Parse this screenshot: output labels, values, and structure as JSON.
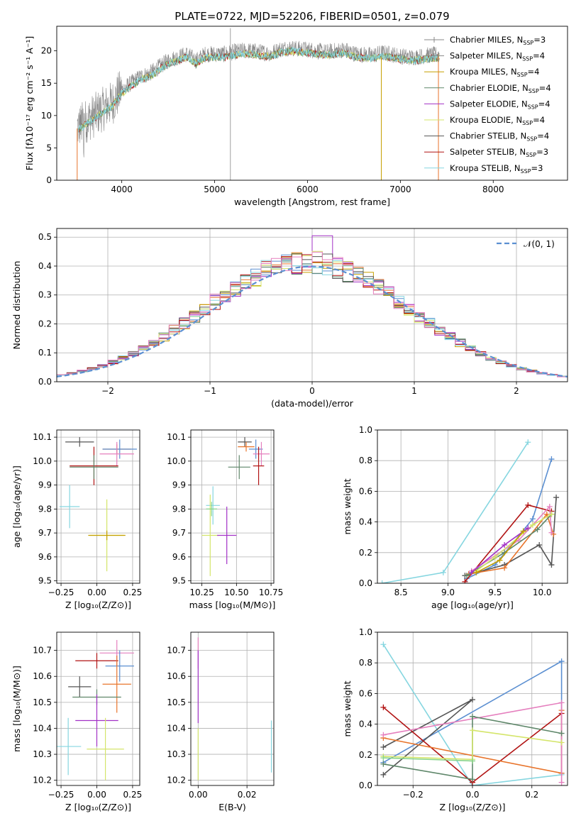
{
  "colors": {
    "chabrier_miles": "#5b8fd1",
    "salpeter_miles": "#e8742b",
    "kroupa_miles": "#c5a000",
    "chabrier_elodie": "#5f876a",
    "salpeter_elodie": "#a231c6",
    "kroupa_elodie": "#d4e56a",
    "chabrier_stelib": "#555555",
    "salpeter_stelib": "#b11313",
    "kroupa_stelib": "#86d6e0",
    "pink": "#e57fbe",
    "green_light": "#88d48a",
    "model_gray": "#888888",
    "gauss": "#5b8fd1"
  },
  "chart_data": [
    {
      "type": "line",
      "title": "PLATE=0722, MJD=52206, FIBERID=0501, z=0.079",
      "xlabel": "wavelength [Angstrom, rest frame]",
      "ylabel": "Flux [fλ10⁻¹⁷ erg cm⁻² s⁻¹ A⁻¹]",
      "xlim": [
        3300,
        8800
      ],
      "ylim": [
        0,
        23.8
      ],
      "xticks": [
        4000,
        5000,
        6000,
        7000,
        8000
      ],
      "yticks": [
        0,
        5,
        10,
        15,
        20
      ],
      "grid": false,
      "legend_position": "right",
      "spectrum_x": [
        3500,
        3600,
        3700,
        3800,
        3900,
        4000,
        4100,
        4200,
        4300,
        4400,
        4500,
        4600,
        4700,
        4800,
        4900,
        5000,
        5100,
        5200,
        5300,
        5400,
        5500,
        5600,
        5700,
        5800,
        5900,
        6000,
        6100,
        6200,
        6300,
        6400,
        6500,
        6600,
        6700,
        6800,
        6900,
        7000,
        7100,
        7200,
        7300,
        7400
      ],
      "spectrum_y": [
        8,
        9,
        10,
        11,
        12,
        14,
        15,
        16,
        16.5,
        17.5,
        18.5,
        19,
        19.5,
        18.5,
        19.5,
        19.5,
        19.5,
        19.8,
        20,
        20,
        19.8,
        19.6,
        20.2,
        20.5,
        20.3,
        20.2,
        20,
        19.8,
        20,
        20.2,
        19.6,
        19.4,
        19.3,
        19.7,
        19.5,
        19.2,
        19,
        19.1,
        19.3,
        19.4
      ],
      "legend": [
        {
          "label": "Chabrier MILES, N",
          "sub": "SSP",
          "tail": "=3",
          "style": "marker",
          "color_key": "model_gray"
        },
        {
          "label": "Salpeter MILES, N",
          "sub": "SSP",
          "tail": "=4",
          "style": "marker",
          "color_key": "model_gray"
        },
        {
          "label": "Kroupa MILES, N",
          "sub": "SSP",
          "tail": "=4",
          "style": "line",
          "color_key": "kroupa_miles"
        },
        {
          "label": "Chabrier ELODIE, N",
          "sub": "SSP",
          "tail": "=4",
          "style": "line",
          "color_key": "chabrier_elodie"
        },
        {
          "label": "Salpeter ELODIE, N",
          "sub": "SSP",
          "tail": "=4",
          "style": "line",
          "color_key": "salpeter_elodie"
        },
        {
          "label": "Kroupa ELODIE, N",
          "sub": "SSP",
          "tail": "=4",
          "style": "line",
          "color_key": "kroupa_elodie"
        },
        {
          "label": "Chabrier STELIB, N",
          "sub": "SSP",
          "tail": "=4",
          "style": "line",
          "color_key": "chabrier_stelib"
        },
        {
          "label": "Salpeter STELIB, N",
          "sub": "SSP",
          "tail": "=3",
          "style": "line",
          "color_key": "salpeter_stelib"
        },
        {
          "label": "Kroupa STELIB, N",
          "sub": "SSP",
          "tail": "=3",
          "style": "line",
          "color_key": "kroupa_stelib"
        }
      ]
    },
    {
      "type": "line",
      "xlabel": "(data-model)/error",
      "ylabel": "Normed distribution",
      "xlim": [
        -2.5,
        2.5
      ],
      "ylim": [
        0,
        0.53
      ],
      "xticks": [
        -2,
        -1,
        0,
        1,
        2
      ],
      "xtick_labels": [
        "−2",
        "−1",
        "0",
        "1",
        "2"
      ],
      "yticks": [
        0.0,
        0.1,
        0.2,
        0.3,
        0.4,
        0.5
      ],
      "ytick_labels": [
        "0.0",
        "0.1",
        "0.2",
        "0.3",
        "0.4",
        "0.5"
      ],
      "grid": true,
      "legend_position": "top-right",
      "gauss_label": "𝒩(0, 1)",
      "gauss_mu": 0,
      "gauss_sigma": 1,
      "hist_bin_width": 0.1,
      "hist_color_keys": [
        "chabrier_miles",
        "salpeter_miles",
        "kroupa_miles",
        "chabrier_elodie",
        "salpeter_elodie",
        "kroupa_elodie",
        "chabrier_stelib",
        "salpeter_stelib",
        "kroupa_stelib",
        "pink"
      ]
    },
    {
      "type": "scatter",
      "xlabel": "Z [log₁₀(Z/Z⊙)]",
      "ylabel": "age  [log₁₀(age/yr)]",
      "xlim": [
        -0.28,
        0.3
      ],
      "ylim": [
        9.49,
        10.13
      ],
      "xticks": [
        -0.25,
        0.0,
        0.25
      ],
      "xtick_labels": [
        "−0.25",
        "0.00",
        "0.25"
      ],
      "yticks": [
        9.5,
        9.6,
        9.7,
        9.8,
        9.9,
        10.0,
        10.1
      ],
      "ytick_labels": [
        "9.5",
        "9.6",
        "9.7",
        "9.8",
        "9.9",
        "10.0",
        "10.1"
      ],
      "grid": true,
      "points": [
        {
          "x": -0.12,
          "y": 10.08,
          "xerr": 0.1,
          "yerr": 0.02,
          "color_key": "chabrier_stelib"
        },
        {
          "x": 0.14,
          "y": 10.05,
          "xerr": 0.1,
          "yerr": 0.02,
          "color_key": "salpeter_miles"
        },
        {
          "x": 0.16,
          "y": 10.05,
          "xerr": 0.12,
          "yerr": 0.04,
          "color_key": "chabrier_miles"
        },
        {
          "x": 0.14,
          "y": 10.03,
          "xerr": 0.12,
          "yerr": 0.05,
          "color_key": "pink"
        },
        {
          "x": -0.02,
          "y": 9.98,
          "xerr": 0.17,
          "yerr": 0.08,
          "color_key": "salpeter_stelib"
        },
        {
          "x": -0.02,
          "y": 9.975,
          "xerr": 0.17,
          "yerr": 0.05,
          "color_key": "chabrier_elodie"
        },
        {
          "x": -0.19,
          "y": 9.81,
          "xerr": 0.07,
          "yerr": 0.09,
          "color_key": "kroupa_stelib"
        },
        {
          "x": 0.07,
          "y": 9.69,
          "xerr": 0.12,
          "yerr": 0.15,
          "color_key": "kroupa_elodie"
        },
        {
          "x": 0.07,
          "y": 9.69,
          "xerr": 0.13,
          "yerr": 0.02,
          "color_key": "kroupa_miles"
        }
      ]
    },
    {
      "type": "scatter",
      "xlabel": "mass [log₁₀(M/M⊙)]",
      "ylabel": "",
      "xlim": [
        10.17,
        10.77
      ],
      "ylim": [
        9.49,
        10.13
      ],
      "xticks": [
        10.25,
        10.5,
        10.75
      ],
      "xtick_labels": [
        "10.25",
        "10.50",
        "10.75"
      ],
      "yticks": [
        9.5,
        9.6,
        9.7,
        9.8,
        9.9,
        10.0,
        10.1
      ],
      "ytick_labels": [
        "9.5",
        "9.6",
        "9.7",
        "9.8",
        "9.9",
        "10.0",
        "10.1"
      ],
      "grid": true,
      "points": [
        {
          "x": 10.56,
          "y": 10.08,
          "xerr": 0.05,
          "yerr": 0.02,
          "color_key": "chabrier_stelib"
        },
        {
          "x": 10.57,
          "y": 10.06,
          "xerr": 0.06,
          "yerr": 0.02,
          "color_key": "salpeter_miles"
        },
        {
          "x": 10.64,
          "y": 10.05,
          "xerr": 0.05,
          "yerr": 0.04,
          "color_key": "chabrier_miles"
        },
        {
          "x": 10.68,
          "y": 10.03,
          "xerr": 0.06,
          "yerr": 0.05,
          "color_key": "pink"
        },
        {
          "x": 10.66,
          "y": 9.98,
          "xerr": 0.04,
          "yerr": 0.08,
          "color_key": "salpeter_stelib"
        },
        {
          "x": 10.52,
          "y": 9.975,
          "xerr": 0.08,
          "yerr": 0.05,
          "color_key": "chabrier_elodie"
        },
        {
          "x": 10.33,
          "y": 9.815,
          "xerr": 0.05,
          "yerr": 0.08,
          "color_key": "kroupa_stelib"
        },
        {
          "x": 10.31,
          "y": 9.69,
          "xerr": 0.06,
          "yerr": 0.17,
          "color_key": "kroupa_elodie"
        },
        {
          "x": 10.43,
          "y": 9.69,
          "xerr": 0.07,
          "yerr": 0.12,
          "color_key": "salpeter_elodie"
        },
        {
          "x": 10.32,
          "y": 9.8,
          "xerr": 0.04,
          "yerr": 0.03,
          "color_key": "green_light"
        }
      ]
    },
    {
      "type": "line",
      "xlabel": "age  [log₁₀(age/yr)]",
      "ylabel": "mass weight",
      "xlim": [
        8.25,
        10.27
      ],
      "ylim": [
        0,
        1
      ],
      "xticks": [
        8.5,
        9.0,
        9.5,
        10.0
      ],
      "xtick_labels": [
        "8.5",
        "9.0",
        "9.5",
        "10.0"
      ],
      "yticks": [
        0.0,
        0.2,
        0.4,
        0.6,
        0.8,
        1.0
      ],
      "ytick_labels": [
        "0.0",
        "0.2",
        "0.4",
        "0.6",
        "0.8",
        "1.0"
      ],
      "grid": true,
      "series": [
        {
          "color_key": "kroupa_stelib",
          "x": [
            8.3,
            8.95,
            9.85
          ],
          "y": [
            0.0,
            0.07,
            0.92
          ]
        },
        {
          "color_key": "chabrier_miles",
          "x": [
            9.2,
            9.5,
            9.9,
            10.1
          ],
          "y": [
            0.03,
            0.12,
            0.42,
            0.81
          ]
        },
        {
          "color_key": "chabrier_stelib",
          "x": [
            9.18,
            9.6,
            9.97,
            10.1,
            10.15
          ],
          "y": [
            0.05,
            0.12,
            0.25,
            0.12,
            0.56
          ]
        },
        {
          "color_key": "salpeter_stelib",
          "x": [
            9.18,
            9.85,
            10.1
          ],
          "y": [
            0.01,
            0.51,
            0.47
          ]
        },
        {
          "color_key": "salpeter_miles",
          "x": [
            9.22,
            9.6,
            10.05,
            10.12
          ],
          "y": [
            0.06,
            0.1,
            0.45,
            0.32
          ]
        },
        {
          "color_key": "pink",
          "x": [
            9.25,
            9.75,
            10.08,
            10.1
          ],
          "y": [
            0.08,
            0.28,
            0.5,
            0.33
          ]
        },
        {
          "color_key": "chabrier_elodie",
          "x": [
            9.2,
            9.6,
            9.95,
            10.1
          ],
          "y": [
            0.05,
            0.2,
            0.35,
            0.45
          ]
        },
        {
          "color_key": "kroupa_elodie",
          "x": [
            9.3,
            9.5,
            9.9,
            10.1
          ],
          "y": [
            0.08,
            0.17,
            0.38,
            0.45
          ]
        },
        {
          "color_key": "salpeter_elodie",
          "x": [
            9.25,
            9.6,
            9.85
          ],
          "y": [
            0.07,
            0.25,
            0.36
          ]
        },
        {
          "color_key": "kroupa_miles",
          "x": [
            9.3,
            9.55,
            9.8
          ],
          "y": [
            0.07,
            0.15,
            0.34
          ]
        }
      ]
    },
    {
      "type": "scatter",
      "xlabel": "Z [log₁₀(Z/Z⊙)]",
      "ylabel": "mass [log₁₀(M/M⊙)]",
      "xlim": [
        -0.28,
        0.3
      ],
      "ylim": [
        10.18,
        10.77
      ],
      "xticks": [
        -0.25,
        0.0,
        0.25
      ],
      "xtick_labels": [
        "−0.25",
        "0.00",
        "0.25"
      ],
      "yticks": [
        10.2,
        10.3,
        10.4,
        10.5,
        10.6,
        10.7
      ],
      "ytick_labels": [
        "10.2",
        "10.3",
        "10.4",
        "10.5",
        "10.6",
        "10.7"
      ],
      "grid": true,
      "points": [
        {
          "x": 0.14,
          "y": 10.69,
          "xerr": 0.12,
          "yerr": 0.05,
          "color_key": "pink"
        },
        {
          "x": 0.0,
          "y": 10.66,
          "xerr": 0.15,
          "yerr": 0.03,
          "color_key": "salpeter_stelib"
        },
        {
          "x": 0.16,
          "y": 10.64,
          "xerr": 0.1,
          "yerr": 0.06,
          "color_key": "chabrier_miles"
        },
        {
          "x": 0.14,
          "y": 10.57,
          "xerr": 0.1,
          "yerr": 0.11,
          "color_key": "salpeter_miles"
        },
        {
          "x": -0.12,
          "y": 10.56,
          "xerr": 0.08,
          "yerr": 0.04,
          "color_key": "chabrier_stelib"
        },
        {
          "x": 0.0,
          "y": 10.52,
          "xerr": 0.17,
          "yerr": 0.03,
          "color_key": "chabrier_elodie"
        },
        {
          "x": 0.0,
          "y": 10.43,
          "xerr": 0.15,
          "yerr": 0.1,
          "color_key": "salpeter_elodie"
        },
        {
          "x": -0.2,
          "y": 10.33,
          "xerr": 0.09,
          "yerr": 0.11,
          "color_key": "kroupa_stelib"
        },
        {
          "x": 0.06,
          "y": 10.32,
          "xerr": 0.13,
          "yerr": 0.12,
          "color_key": "kroupa_elodie"
        }
      ]
    },
    {
      "type": "scatter",
      "xlabel": "E(B-V)",
      "ylabel": "",
      "xlim": [
        -0.003,
        0.031
      ],
      "ylim": [
        10.18,
        10.77
      ],
      "xticks": [
        0.0,
        0.02
      ],
      "xtick_labels": [
        "0.00",
        "0.02"
      ],
      "yticks": [
        10.2,
        10.3,
        10.4,
        10.5,
        10.6,
        10.7
      ],
      "ytick_labels": [
        "10.2",
        "10.3",
        "10.4",
        "10.5",
        "10.6",
        "10.7"
      ],
      "grid": true,
      "points": [
        {
          "x": 0.0,
          "y": 10.69,
          "xerr": 0,
          "yerr": 0.06,
          "color_key": "pink"
        },
        {
          "x": 0.0,
          "y": 10.56,
          "xerr": 0,
          "yerr": 0.14,
          "color_key": "salpeter_elodie"
        },
        {
          "x": 0.0,
          "y": 10.3,
          "xerr": 0,
          "yerr": 0.1,
          "color_key": "kroupa_elodie"
        },
        {
          "x": 0.03,
          "y": 10.33,
          "xerr": 0,
          "yerr": 0.1,
          "color_key": "kroupa_stelib"
        }
      ]
    },
    {
      "type": "line",
      "xlabel": "Z [log₁₀(Z/Z⊙)]",
      "ylabel": "mass weight",
      "xlim": [
        -0.32,
        0.32
      ],
      "ylim": [
        0,
        1
      ],
      "xticks": [
        -0.2,
        0.0,
        0.2
      ],
      "xtick_labels": [
        "−0.2",
        "0.0",
        "0.2"
      ],
      "yticks": [
        0.0,
        0.2,
        0.4,
        0.6,
        0.8,
        1.0
      ],
      "ytick_labels": [
        "0.0",
        "0.2",
        "0.4",
        "0.6",
        "0.8",
        "1.0"
      ],
      "grid": true,
      "series": [
        {
          "color_key": "kroupa_stelib",
          "x": [
            -0.3,
            0.0,
            0.3
          ],
          "y": [
            0.92,
            0.0,
            0.07
          ]
        },
        {
          "color_key": "chabrier_miles",
          "x": [
            -0.3,
            0.3,
            0.3
          ],
          "y": [
            0.15,
            0.81,
            0.08
          ]
        },
        {
          "color_key": "chabrier_stelib",
          "x": [
            -0.3,
            0.0,
            -0.3
          ],
          "y": [
            0.07,
            0.56,
            0.25
          ]
        },
        {
          "color_key": "salpeter_stelib",
          "x": [
            -0.3,
            0.0,
            0.3
          ],
          "y": [
            0.51,
            0.02,
            0.47
          ]
        },
        {
          "color_key": "salpeter_miles",
          "x": [
            -0.3,
            0.3,
            0.3
          ],
          "y": [
            0.31,
            0.08,
            0.49
          ]
        },
        {
          "color_key": "pink",
          "x": [
            -0.3,
            0.3,
            0.3
          ],
          "y": [
            0.33,
            0.54,
            0.02
          ]
        },
        {
          "color_key": "chabrier_elodie",
          "x": [
            -0.3,
            0.0,
            0.0,
            0.3
          ],
          "y": [
            0.14,
            0.04,
            0.45,
            0.34
          ]
        },
        {
          "color_key": "kroupa_elodie",
          "x": [
            -0.3,
            0.0,
            0.0,
            0.3
          ],
          "y": [
            0.19,
            0.17,
            0.36,
            0.28
          ]
        },
        {
          "color_key": "green_light",
          "x": [
            -0.3,
            0.0
          ],
          "y": [
            0.18,
            0.16
          ]
        }
      ]
    }
  ]
}
